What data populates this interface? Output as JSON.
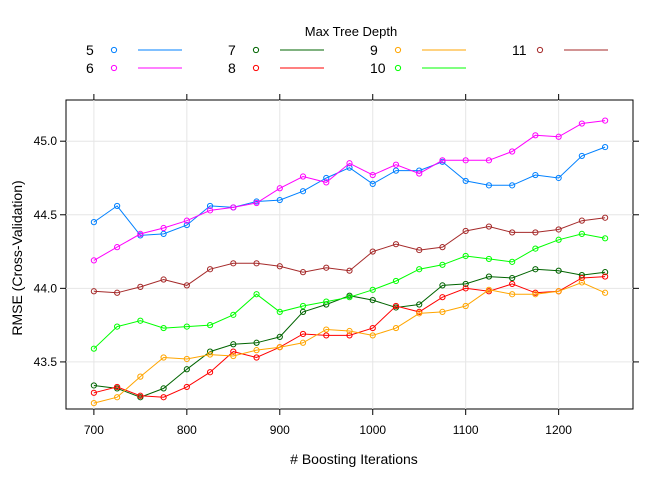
{
  "chart_data": {
    "type": "line",
    "title": "",
    "xlabel": "# Boosting Iterations",
    "ylabel": "RMSE (Cross-Validation)",
    "legend_title": "Max Tree Depth",
    "legend_position": "top",
    "grid": true,
    "xlim": [
      670,
      1280
    ],
    "ylim": [
      43.18,
      45.28
    ],
    "x_ticks": [
      "700",
      "800",
      "900",
      "1000",
      "1100",
      "1200"
    ],
    "y_ticks": [
      "43.5",
      "44.0",
      "44.5",
      "45.0"
    ],
    "x": [
      700,
      725,
      750,
      775,
      800,
      825,
      850,
      875,
      900,
      925,
      950,
      975,
      1000,
      1025,
      1050,
      1075,
      1100,
      1125,
      1150,
      1175,
      1200,
      1225,
      1250
    ],
    "series": [
      {
        "name": "5",
        "color": "#0080ff",
        "values": [
          44.45,
          44.56,
          44.36,
          44.37,
          44.43,
          44.56,
          44.55,
          44.59,
          44.6,
          44.66,
          44.75,
          44.82,
          44.71,
          44.8,
          44.8,
          44.86,
          44.73,
          44.7,
          44.7,
          44.77,
          44.75,
          44.9,
          44.96
        ]
      },
      {
        "name": "6",
        "color": "#ff00ff",
        "values": [
          44.19,
          44.28,
          44.37,
          44.41,
          44.46,
          44.53,
          44.55,
          44.58,
          44.68,
          44.76,
          44.72,
          44.85,
          44.77,
          44.84,
          44.78,
          44.87,
          44.87,
          44.87,
          44.93,
          45.04,
          45.03,
          45.12,
          45.14
        ]
      },
      {
        "name": "7",
        "color": "#006400",
        "values": [
          43.34,
          43.32,
          43.26,
          43.32,
          43.45,
          43.57,
          43.62,
          43.63,
          43.67,
          43.84,
          43.89,
          43.95,
          43.92,
          43.87,
          43.89,
          44.02,
          44.03,
          44.08,
          44.07,
          44.13,
          44.12,
          44.09,
          44.11
        ]
      },
      {
        "name": "8",
        "color": "#ff0000",
        "values": [
          43.29,
          43.33,
          43.27,
          43.26,
          43.33,
          43.43,
          43.57,
          43.53,
          43.6,
          43.69,
          43.68,
          43.68,
          43.73,
          43.88,
          43.84,
          43.94,
          44.0,
          43.98,
          44.03,
          43.97,
          43.98,
          44.07,
          44.08
        ]
      },
      {
        "name": "9",
        "color": "#ffa500",
        "values": [
          43.22,
          43.26,
          43.4,
          43.53,
          43.52,
          43.55,
          43.54,
          43.58,
          43.6,
          43.63,
          43.72,
          43.71,
          43.68,
          43.73,
          43.83,
          43.84,
          43.88,
          43.99,
          43.96,
          43.96,
          43.98,
          44.04,
          43.97
        ]
      },
      {
        "name": "10",
        "color": "#00ff00",
        "values": [
          43.59,
          43.74,
          43.78,
          43.73,
          43.74,
          43.75,
          43.82,
          43.96,
          43.84,
          43.88,
          43.91,
          43.94,
          43.99,
          44.05,
          44.13,
          44.16,
          44.22,
          44.2,
          44.18,
          44.27,
          44.33,
          44.37,
          44.34
        ]
      },
      {
        "name": "11",
        "color": "#a52a2a",
        "values": [
          43.98,
          43.97,
          44.01,
          44.06,
          44.02,
          44.13,
          44.17,
          44.17,
          44.15,
          44.11,
          44.14,
          44.12,
          44.25,
          44.3,
          44.26,
          44.28,
          44.39,
          44.42,
          44.38,
          44.38,
          44.4,
          44.46,
          44.48
        ]
      }
    ]
  }
}
